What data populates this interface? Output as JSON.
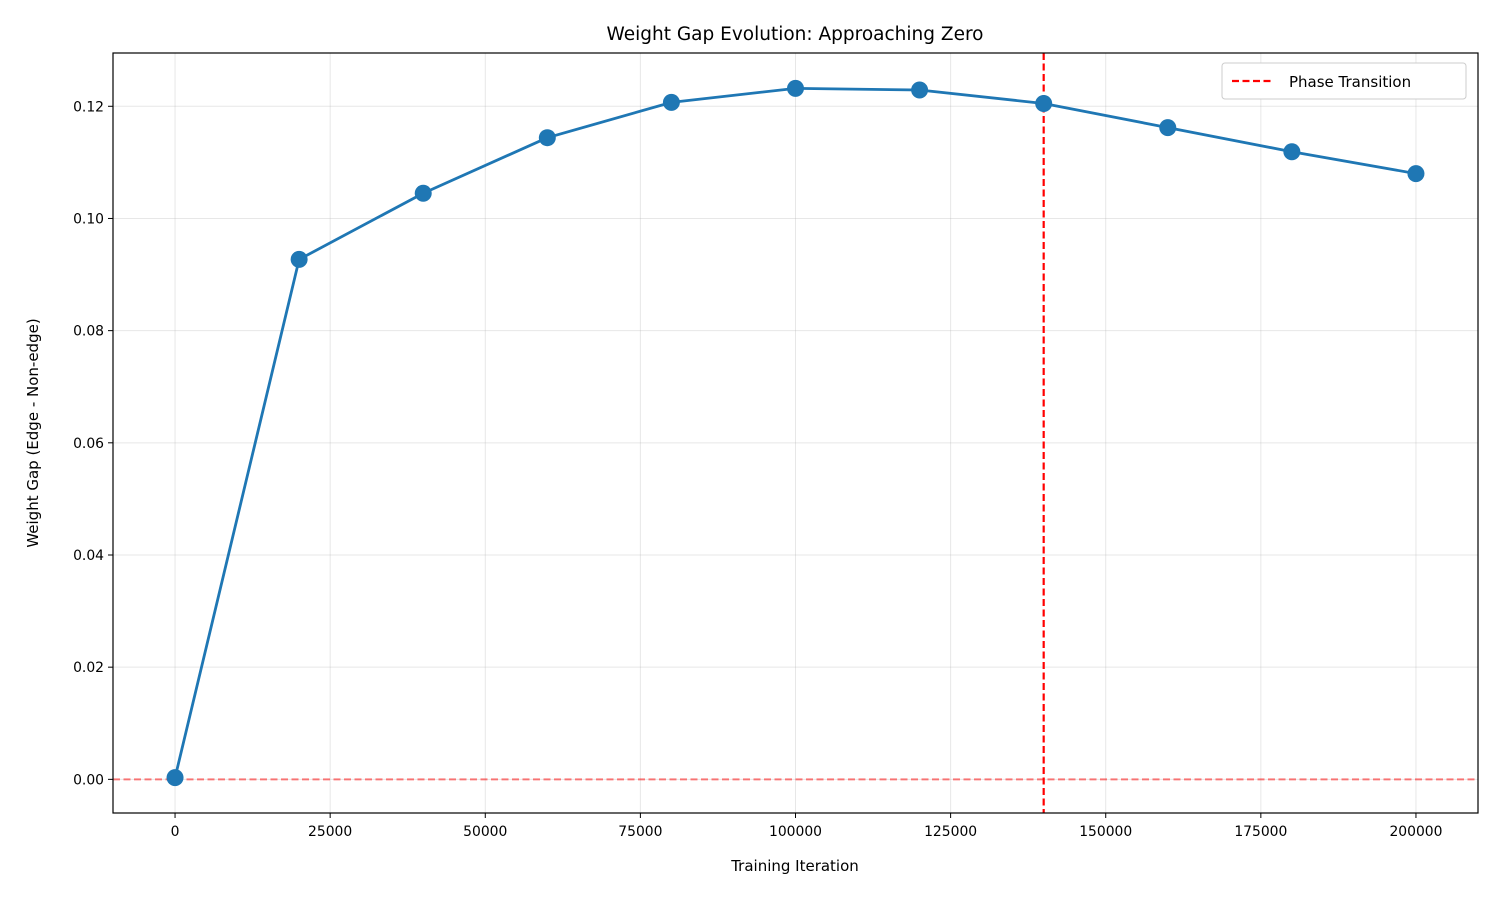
{
  "chart_data": {
    "type": "line",
    "title": "Weight Gap Evolution: Approaching Zero",
    "xlabel": "Training Iteration",
    "ylabel": "Weight Gap (Edge - Non-edge)",
    "xlim": [
      -10000,
      210000
    ],
    "ylim": [
      -0.006,
      0.1295
    ],
    "xticks": [
      0,
      25000,
      50000,
      75000,
      100000,
      125000,
      150000,
      175000,
      200000
    ],
    "yticks": [
      0.0,
      0.02,
      0.04,
      0.06,
      0.08,
      0.1,
      0.12
    ],
    "ytick_labels": [
      "0.00",
      "0.02",
      "0.04",
      "0.06",
      "0.08",
      "0.10",
      "0.12"
    ],
    "grid": true,
    "series": [
      {
        "name": "",
        "color": "#1f77b4",
        "x": [
          0,
          20000,
          40000,
          60000,
          80000,
          100000,
          120000,
          140000,
          160000,
          180000,
          200000
        ],
        "y": [
          0.0003,
          0.0927,
          0.1045,
          0.1144,
          0.1207,
          0.1232,
          0.1229,
          0.1205,
          0.1162,
          0.1119,
          0.108
        ]
      }
    ],
    "reference_lines": [
      {
        "orientation": "vertical",
        "value": 140000,
        "color": "#ff0000",
        "style": "dashed",
        "label": "Phase Transition"
      },
      {
        "orientation": "horizontal",
        "value": 0,
        "color": "#ff0000",
        "style": "dashed",
        "alpha": 0.5,
        "label": ""
      }
    ],
    "legend": {
      "placement": "top-right",
      "entries": [
        "Phase Transition"
      ]
    }
  }
}
